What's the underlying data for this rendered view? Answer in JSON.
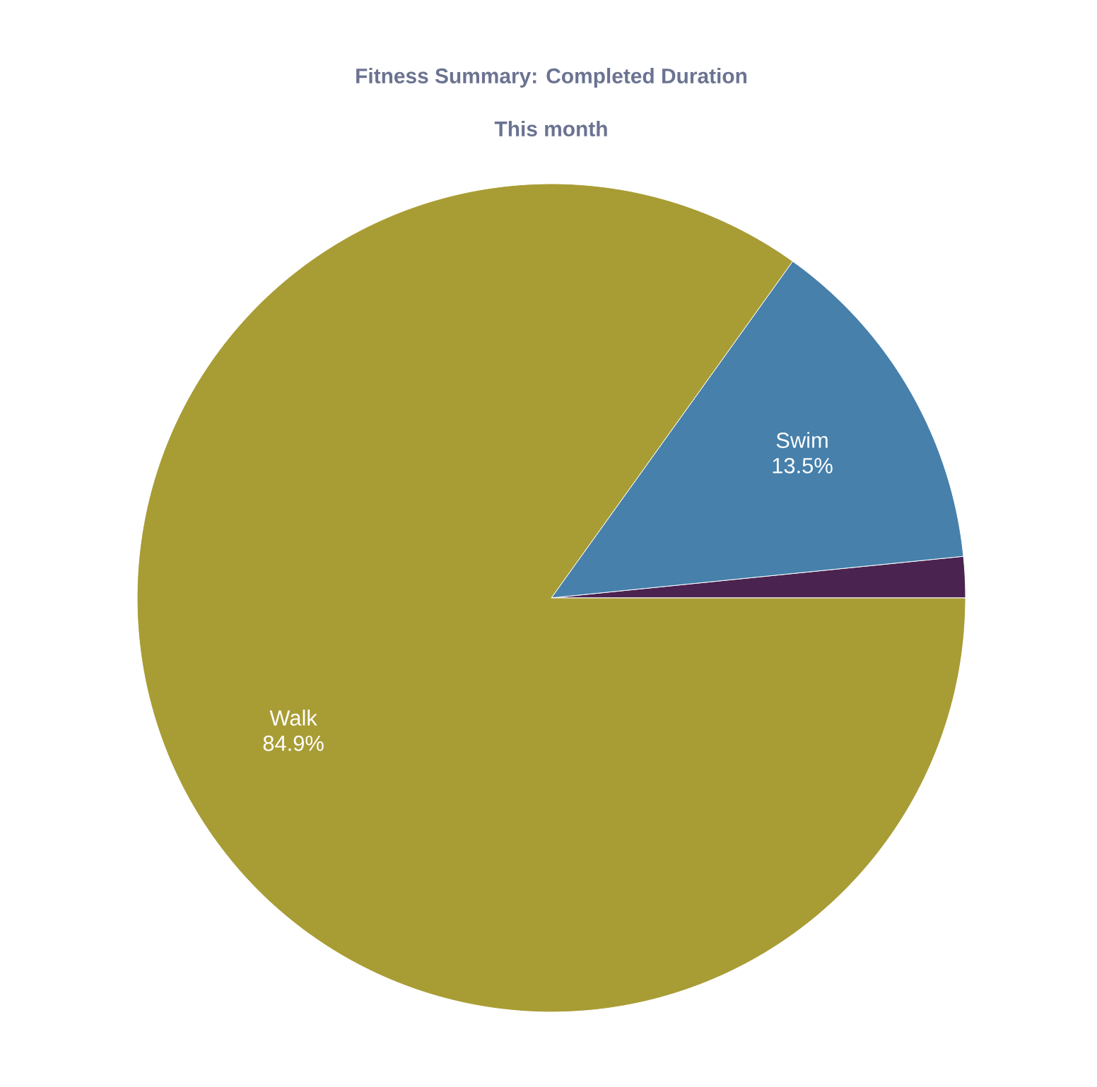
{
  "chart_data": {
    "type": "pie",
    "title": "Fitness Summary: Completed Duration",
    "subtitle": "This month",
    "categories": [
      null,
      "Swim",
      "Walk"
    ],
    "values": [
      1.6,
      13.5,
      84.9
    ],
    "value_labels": [
      null,
      "13.5%",
      "84.9%"
    ],
    "colors": [
      "#4b2350",
      "#4680ab",
      "#a89c35"
    ]
  }
}
